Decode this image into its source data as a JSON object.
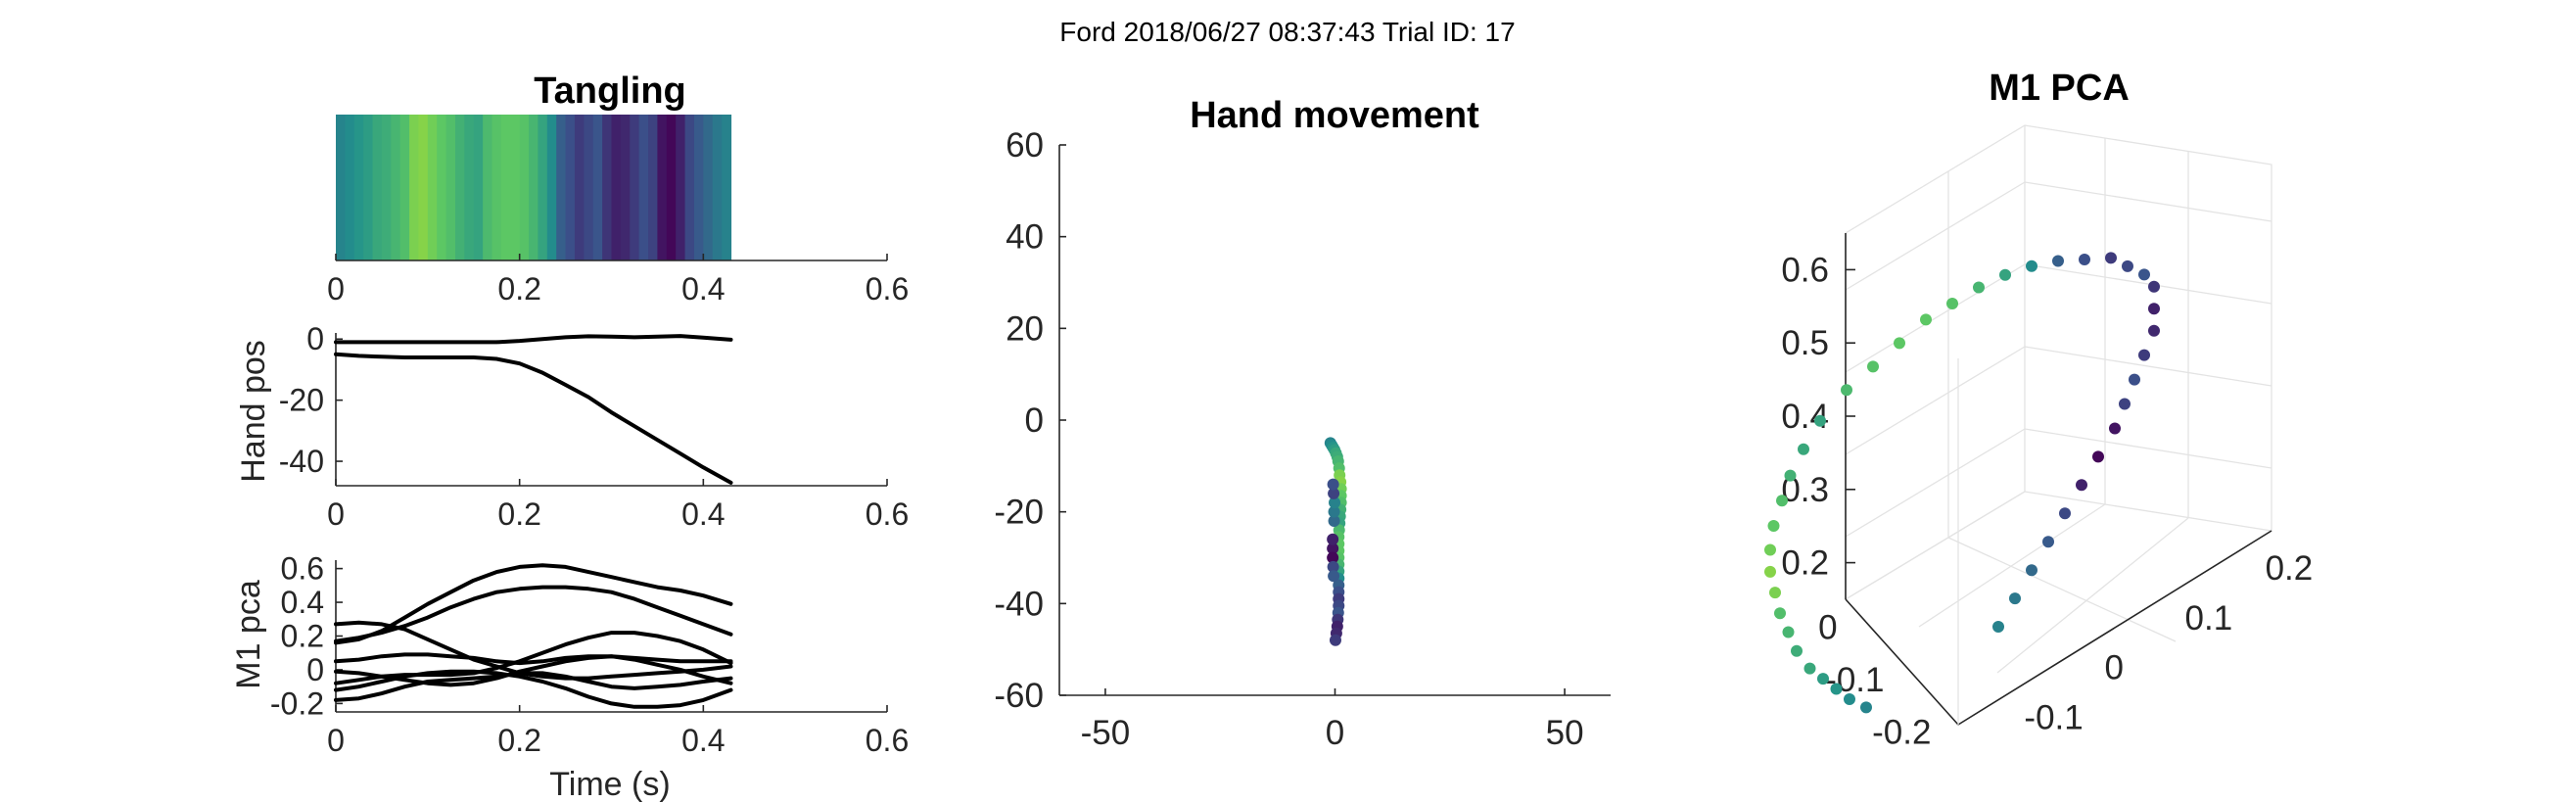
{
  "figure_title": "Ford 2018/06/27 08:37:43 Trial ID: 17",
  "colormap": [
    "#440154",
    "#3b528b",
    "#21918c",
    "#5ec962",
    "#a0da39"
  ],
  "chart_data": [
    {
      "id": "tangling",
      "type": "heatmap",
      "title": "Tangling",
      "xlim": [
        0,
        0.6
      ],
      "xticks": [
        0,
        0.2,
        0.4,
        0.6
      ],
      "xtick_labels": [
        "0",
        "0.2",
        "0.4",
        "0.6"
      ],
      "x_start": 0,
      "bin_width": 0.01,
      "values": [
        0.45,
        0.48,
        0.52,
        0.55,
        0.6,
        0.62,
        0.66,
        0.7,
        0.86,
        0.9,
        0.82,
        0.74,
        0.7,
        0.64,
        0.6,
        0.58,
        0.68,
        0.72,
        0.74,
        0.74,
        0.72,
        0.66,
        0.58,
        0.48,
        0.3,
        0.24,
        0.18,
        0.22,
        0.26,
        0.16,
        0.1,
        0.12,
        0.18,
        0.24,
        0.2,
        0.06,
        0.02,
        0.1,
        0.22,
        0.28,
        0.34,
        0.4,
        0.44
      ]
    },
    {
      "id": "hand-pos",
      "type": "line",
      "ylabel": "Hand pos",
      "xlim": [
        0,
        0.6
      ],
      "ylim": [
        -48,
        2
      ],
      "xticks": [
        0,
        0.2,
        0.4,
        0.6
      ],
      "xtick_labels": [
        "0",
        "0.2",
        "0.4",
        "0.6"
      ],
      "yticks": [
        0,
        -20,
        -40
      ],
      "ytick_labels": [
        "0",
        "-20",
        "-40"
      ],
      "x": [
        0,
        0.025,
        0.05,
        0.075,
        0.1,
        0.125,
        0.15,
        0.175,
        0.2,
        0.225,
        0.25,
        0.275,
        0.3,
        0.325,
        0.35,
        0.375,
        0.4,
        0.43
      ],
      "series": [
        {
          "values": [
            -1,
            -1,
            -1,
            -1,
            -1,
            -1,
            -1,
            -1,
            -0.6,
            0,
            0.6,
            0.9,
            0.8,
            0.6,
            0.8,
            1,
            0.5,
            -0.2
          ]
        },
        {
          "values": [
            -5,
            -5.5,
            -5.8,
            -6,
            -6,
            -6,
            -6,
            -6.5,
            -8,
            -11,
            -15,
            -19,
            -24,
            -28.5,
            -33,
            -37.5,
            -42,
            -47
          ]
        }
      ]
    },
    {
      "id": "m1-pca-traces",
      "type": "line",
      "ylabel": "M1 pca",
      "xlabel": "Time (s)",
      "xlim": [
        0,
        0.6
      ],
      "ylim": [
        -0.25,
        0.65
      ],
      "xticks": [
        0,
        0.2,
        0.4,
        0.6
      ],
      "xtick_labels": [
        "0",
        "0.2",
        "0.4",
        "0.6"
      ],
      "yticks": [
        0.6,
        0.4,
        0.2,
        0,
        -0.2
      ],
      "ytick_labels": [
        "0.6",
        "0.4",
        "0.2",
        "0",
        "-0.2"
      ],
      "x": [
        0,
        0.025,
        0.05,
        0.075,
        0.1,
        0.125,
        0.15,
        0.175,
        0.2,
        0.225,
        0.25,
        0.275,
        0.3,
        0.325,
        0.35,
        0.375,
        0.4,
        0.43
      ],
      "series": [
        {
          "values": [
            0.27,
            0.28,
            0.27,
            0.24,
            0.18,
            0.12,
            0.06,
            0.02,
            -0.02,
            -0.04,
            -0.05,
            -0.05,
            -0.04,
            -0.03,
            -0.02,
            -0.01,
            0.0,
            0.02
          ]
        },
        {
          "values": [
            0.16,
            0.18,
            0.23,
            0.31,
            0.39,
            0.46,
            0.53,
            0.58,
            0.61,
            0.62,
            0.61,
            0.58,
            0.55,
            0.52,
            0.49,
            0.47,
            0.44,
            0.39
          ]
        },
        {
          "values": [
            0.17,
            0.19,
            0.22,
            0.26,
            0.31,
            0.37,
            0.42,
            0.46,
            0.48,
            0.49,
            0.49,
            0.48,
            0.46,
            0.42,
            0.37,
            0.32,
            0.27,
            0.21
          ]
        },
        {
          "values": [
            0.05,
            0.06,
            0.08,
            0.09,
            0.09,
            0.08,
            0.07,
            0.05,
            0.04,
            0.05,
            0.07,
            0.08,
            0.08,
            0.06,
            0.03,
            0.0,
            -0.04,
            -0.08
          ]
        },
        {
          "values": [
            -0.08,
            -0.06,
            -0.04,
            -0.03,
            -0.03,
            -0.03,
            -0.02,
            0.01,
            0.05,
            0.1,
            0.15,
            0.19,
            0.22,
            0.22,
            0.2,
            0.17,
            0.12,
            0.04
          ]
        },
        {
          "values": [
            -0.01,
            -0.02,
            -0.04,
            -0.06,
            -0.08,
            -0.09,
            -0.08,
            -0.05,
            -0.01,
            0.02,
            0.05,
            0.07,
            0.08,
            0.07,
            0.06,
            0.05,
            0.05,
            0.05
          ]
        },
        {
          "values": [
            -0.12,
            -0.1,
            -0.07,
            -0.04,
            -0.02,
            -0.01,
            -0.01,
            -0.02,
            -0.04,
            -0.07,
            -0.11,
            -0.16,
            -0.2,
            -0.22,
            -0.22,
            -0.21,
            -0.18,
            -0.12
          ]
        },
        {
          "values": [
            -0.18,
            -0.17,
            -0.14,
            -0.1,
            -0.07,
            -0.06,
            -0.05,
            -0.04,
            -0.02,
            -0.02,
            -0.04,
            -0.07,
            -0.1,
            -0.11,
            -0.1,
            -0.09,
            -0.07,
            -0.05
          ]
        }
      ]
    },
    {
      "id": "hand-movement",
      "type": "scatter",
      "title": "Hand movement",
      "xlim": [
        -60,
        60
      ],
      "ylim": [
        -60,
        60
      ],
      "xticks": [
        -50,
        0,
        50
      ],
      "xtick_labels": [
        "-50",
        "0",
        "50"
      ],
      "yticks": [
        60,
        40,
        20,
        0,
        -20,
        -40,
        -60
      ],
      "ytick_labels": [
        "60",
        "40",
        "20",
        "0",
        "-20",
        "-40",
        "-60"
      ],
      "points": [
        [
          -1,
          -5,
          0.45
        ],
        [
          -0.7,
          -5.5,
          0.48
        ],
        [
          -0.4,
          -6,
          0.52
        ],
        [
          -0.1,
          -6.5,
          0.55
        ],
        [
          0.2,
          -7.2,
          0.6
        ],
        [
          0.5,
          -8,
          0.62
        ],
        [
          0.7,
          -9,
          0.66
        ],
        [
          0.9,
          -10.5,
          0.7
        ],
        [
          1,
          -12,
          0.86
        ],
        [
          1.2,
          -13.5,
          0.9
        ],
        [
          1.3,
          -15,
          0.82
        ],
        [
          1.3,
          -16.5,
          0.74
        ],
        [
          1.3,
          -18,
          0.7
        ],
        [
          1.2,
          -19.5,
          0.64
        ],
        [
          1.1,
          -21,
          0.6
        ],
        [
          1,
          -22.5,
          0.58
        ],
        [
          0.9,
          -24,
          0.68
        ],
        [
          0.8,
          -25.5,
          0.72
        ],
        [
          0.8,
          -27,
          0.74
        ],
        [
          0.8,
          -28.5,
          0.74
        ],
        [
          0.8,
          -30,
          0.72
        ],
        [
          0.8,
          -31.5,
          0.66
        ],
        [
          0.8,
          -33,
          0.58
        ],
        [
          0.8,
          -34.5,
          0.48
        ],
        [
          0.8,
          -36,
          0.3
        ],
        [
          0.8,
          -37.5,
          0.24
        ],
        [
          0.8,
          -39,
          0.18
        ],
        [
          0.8,
          -40.5,
          0.22
        ],
        [
          0.7,
          -42,
          0.26
        ],
        [
          0.6,
          -43.5,
          0.16
        ],
        [
          0.5,
          -45,
          0.1
        ],
        [
          0.3,
          -46.5,
          0.12
        ],
        [
          0.1,
          -48,
          0.18
        ],
        [
          -0.5,
          -28,
          0.06
        ],
        [
          -0.5,
          -30,
          0.02
        ],
        [
          -0.5,
          -26,
          0.1
        ],
        [
          -0.4,
          -32,
          0.22
        ],
        [
          -0.3,
          -34,
          0.28
        ],
        [
          -0.2,
          -22,
          0.34
        ],
        [
          -0.2,
          -20,
          0.4
        ],
        [
          -0.1,
          -18,
          0.44
        ],
        [
          -0.3,
          -16,
          0.2
        ],
        [
          -0.4,
          -14,
          0.24
        ]
      ]
    },
    {
      "id": "m1-pca-3d",
      "type": "scatter",
      "title": "M1 PCA",
      "axes": "3d",
      "zticks": [
        0.2,
        0.3,
        0.4,
        0.5,
        0.6
      ],
      "ztick_labels": [
        "0.2",
        "0.3",
        "0.4",
        "0.5",
        "0.6"
      ],
      "xticks": [
        -0.2,
        -0.1,
        0
      ],
      "xtick_labels": [
        "-0.2",
        "-0.1",
        "0"
      ],
      "yticks": [
        -0.1,
        0,
        0.1,
        0.2
      ],
      "ytick_labels": [
        "-0.1",
        "0",
        "0.1",
        "0.2"
      ],
      "grid": true,
      "points": [
        [
          -0.08,
          -0.02,
          0.12,
          0.45
        ],
        [
          -0.09,
          -0.03,
          0.14,
          0.48
        ],
        [
          -0.1,
          -0.035,
          0.16,
          0.52
        ],
        [
          -0.11,
          -0.04,
          0.18,
          0.55
        ],
        [
          -0.12,
          -0.045,
          0.2,
          0.6
        ],
        [
          -0.13,
          -0.05,
          0.23,
          0.62
        ],
        [
          -0.135,
          -0.055,
          0.26,
          0.66
        ],
        [
          -0.14,
          -0.06,
          0.29,
          0.7
        ],
        [
          -0.145,
          -0.06,
          0.32,
          0.86
        ],
        [
          -0.15,
          -0.06,
          0.35,
          0.9
        ],
        [
          -0.15,
          -0.06,
          0.38,
          0.82
        ],
        [
          -0.15,
          -0.055,
          0.41,
          0.74
        ],
        [
          -0.145,
          -0.05,
          0.44,
          0.7
        ],
        [
          -0.14,
          -0.045,
          0.47,
          0.64
        ],
        [
          -0.13,
          -0.04,
          0.5,
          0.6
        ],
        [
          -0.12,
          -0.03,
          0.53,
          0.58
        ],
        [
          -0.1,
          -0.02,
          0.56,
          0.68
        ],
        [
          -0.08,
          -0.01,
          0.58,
          0.72
        ],
        [
          -0.06,
          0.0,
          0.6,
          0.74
        ],
        [
          -0.04,
          0.01,
          0.62,
          0.74
        ],
        [
          -0.02,
          0.02,
          0.63,
          0.72
        ],
        [
          0.0,
          0.03,
          0.64,
          0.66
        ],
        [
          0.02,
          0.04,
          0.645,
          0.58
        ],
        [
          0.04,
          0.05,
          0.645,
          0.48
        ],
        [
          0.06,
          0.06,
          0.64,
          0.3
        ],
        [
          0.08,
          0.07,
          0.63,
          0.24
        ],
        [
          0.1,
          0.08,
          0.62,
          0.18
        ],
        [
          0.11,
          0.09,
          0.6,
          0.22
        ],
        [
          0.12,
          0.1,
          0.58,
          0.26
        ],
        [
          0.13,
          0.1,
          0.56,
          0.16
        ],
        [
          0.13,
          0.1,
          0.53,
          0.1
        ],
        [
          0.13,
          0.1,
          0.5,
          0.12
        ],
        [
          0.12,
          0.1,
          0.47,
          0.18
        ],
        [
          0.11,
          0.1,
          0.44,
          0.24
        ],
        [
          0.1,
          0.1,
          0.41,
          0.2
        ],
        [
          0.09,
          0.1,
          0.38,
          0.06
        ],
        [
          0.08,
          0.09,
          0.35,
          0.02
        ],
        [
          0.07,
          0.08,
          0.32,
          0.1
        ],
        [
          0.06,
          0.07,
          0.29,
          0.22
        ],
        [
          0.05,
          0.06,
          0.26,
          0.28
        ],
        [
          0.04,
          0.05,
          0.23,
          0.34
        ],
        [
          0.03,
          0.04,
          0.2,
          0.4
        ],
        [
          0.02,
          0.03,
          0.17,
          0.44
        ]
      ]
    }
  ]
}
